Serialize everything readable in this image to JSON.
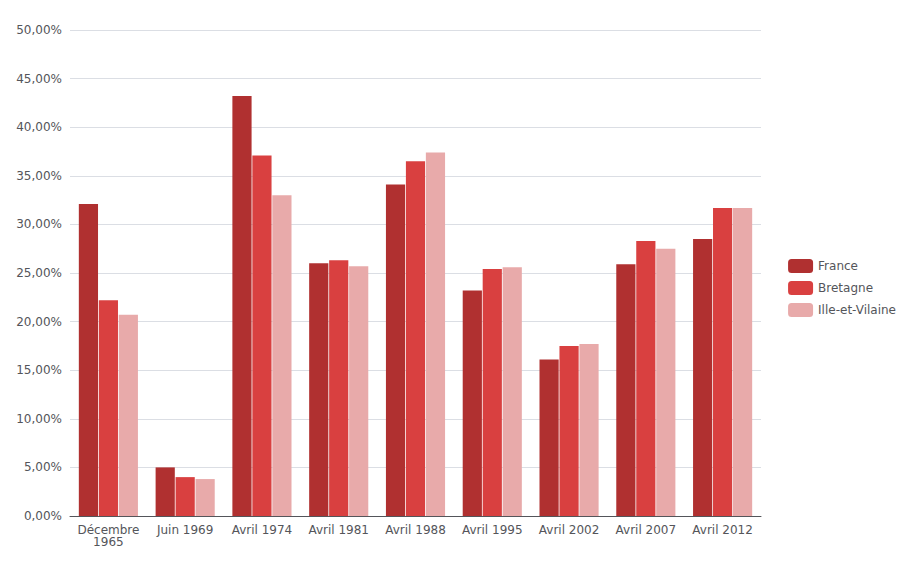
{
  "chart_data": {
    "type": "bar",
    "categories": [
      "Décembre\n1965",
      "Juin 1969",
      "Avril 1974",
      "Avril 1981",
      "Avril 1988",
      "Avril 1995",
      "Avril 2002",
      "Avril 2007",
      "Avril 2012"
    ],
    "series": [
      {
        "name": "France",
        "color": "#B03030",
        "values": [
          0.321,
          0.05,
          0.432,
          0.26,
          0.341,
          0.232,
          0.161,
          0.259,
          0.285
        ]
      },
      {
        "name": "Bretagne",
        "color": "#D94040",
        "values": [
          0.222,
          0.04,
          0.371,
          0.263,
          0.365,
          0.254,
          0.175,
          0.283,
          0.317
        ]
      },
      {
        "name": "Ille-et-Vilaine",
        "color": "#E8AAAA",
        "values": [
          0.207,
          0.038,
          0.33,
          0.257,
          0.374,
          0.256,
          0.177,
          0.275,
          0.317
        ]
      }
    ],
    "ylim": [
      0,
      0.5
    ],
    "yticks": [
      {
        "value": 0.0,
        "label": "0,00%"
      },
      {
        "value": 0.05,
        "label": "5,00%"
      },
      {
        "value": 0.1,
        "label": "10,00%"
      },
      {
        "value": 0.15,
        "label": "15,00%"
      },
      {
        "value": 0.2,
        "label": "20,00%"
      },
      {
        "value": 0.25,
        "label": "25,00%"
      },
      {
        "value": 0.3,
        "label": "30,00%"
      },
      {
        "value": 0.35,
        "label": "35,00%"
      },
      {
        "value": 0.4,
        "label": "40,00%"
      },
      {
        "value": 0.45,
        "label": "45,00%"
      },
      {
        "value": 0.5,
        "label": "50,00%"
      }
    ],
    "grid": true,
    "legend": "right"
  }
}
